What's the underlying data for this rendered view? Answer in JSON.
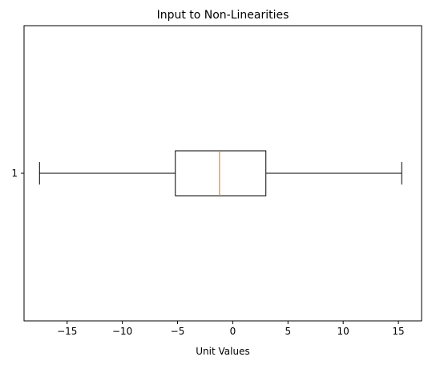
{
  "chart_data": {
    "type": "boxplot",
    "orientation": "horizontal",
    "title": "Input to Non-Linearities",
    "xlabel": "Unit Values",
    "ylabel": "",
    "xlim": [
      -18.9,
      17.1
    ],
    "x_ticks": [
      -15,
      -10,
      -5,
      0,
      5,
      10,
      15
    ],
    "x_tick_labels": [
      "−15",
      "−10",
      "−5",
      "0",
      "5",
      "10",
      "15"
    ],
    "y_tick_labels": [
      "1"
    ],
    "boxes": [
      {
        "label": "1",
        "whisker_low": -17.5,
        "q1": -5.2,
        "median": -1.2,
        "q3": 3.0,
        "whisker_high": 15.3
      }
    ],
    "colors": {
      "box": "#000000",
      "median": "#ff7f0e",
      "axes": "#000000"
    },
    "grid": false
  }
}
